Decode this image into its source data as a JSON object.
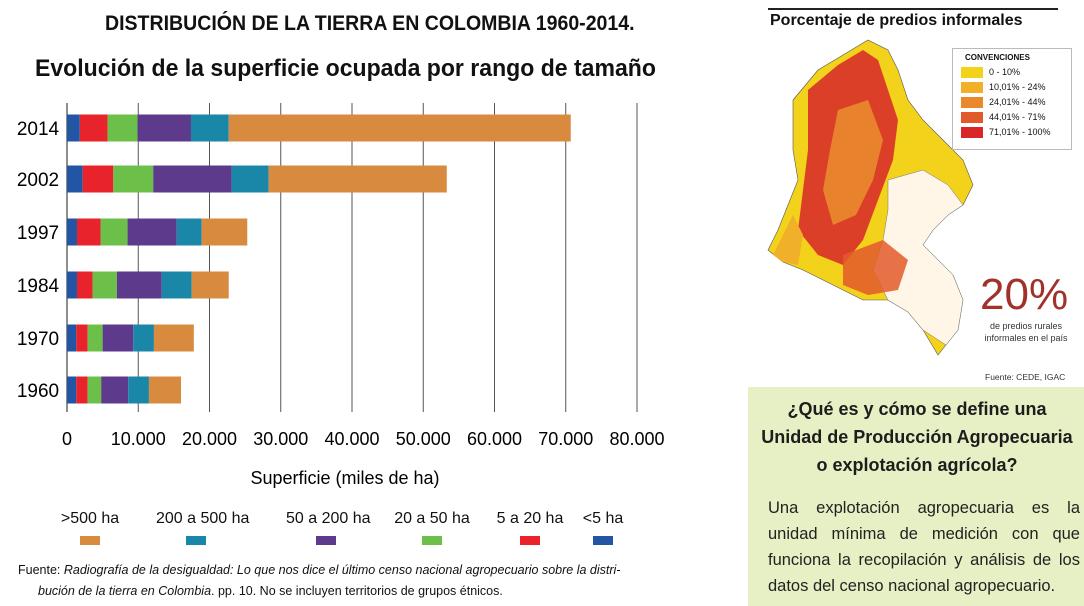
{
  "title_main": "DISTRIBUCIÓN DE LA TIERRA EN COLOMBIA 1960-2014.",
  "title_sub": "Evolución de la superficie ocupada por rango de tamaño",
  "chart_data": {
    "type": "bar",
    "orientation": "horizontal",
    "stacked": true,
    "categories": [
      "2014",
      "2002",
      "1997",
      "1984",
      "1970",
      "1960"
    ],
    "series": [
      {
        "name": "<5 ha",
        "color": "#2255a4",
        "values": [
          1800,
          2200,
          1400,
          1400,
          1300,
          1300
        ]
      },
      {
        "name": "5 a 20 ha",
        "color": "#e8232b",
        "values": [
          3900,
          4300,
          3300,
          2200,
          1600,
          1600
        ]
      },
      {
        "name": "20 a 50 ha",
        "color": "#6cc04a",
        "values": [
          4200,
          5600,
          3800,
          3400,
          2100,
          1900
        ]
      },
      {
        "name": "50 a 200 ha",
        "color": "#5e3a8c",
        "values": [
          7500,
          11000,
          6900,
          6300,
          4300,
          3800
        ]
      },
      {
        "name": "200 a 500 ha",
        "color": "#1b87a8",
        "values": [
          5300,
          5200,
          3500,
          4200,
          2900,
          2900
        ]
      },
      {
        "name": ">500 ha",
        "color": "#d88a3e",
        "values": [
          48000,
          25000,
          6400,
          5200,
          5600,
          4500
        ]
      }
    ],
    "legend_order": [
      ">500 ha",
      "200 a 500 ha",
      "50 a 200 ha",
      "20 a 50 ha",
      "5 a 20 ha",
      "<5 ha"
    ],
    "xlabel": "Superficie (miles de ha)",
    "xlim": [
      0,
      80000
    ],
    "xticks": [
      "0",
      "10.000",
      "20.000",
      "30.000",
      "40.000",
      "50.000",
      "60.000",
      "70.000",
      "80.000"
    ],
    "grid": true
  },
  "source": {
    "prefix": "Fuente: ",
    "italic": "Radiografía de la desigualdad: Lo que nos dice el último censo nacional agropecuario sobre la distri-",
    "italic2": "bución de la tierra en Colombia",
    "rest": ". pp. 10.  No se incluyen territorios de grupos étnicos."
  },
  "map": {
    "title": "Porcentaje de predios informales",
    "legend_title": "CONVENCIONES",
    "legend": [
      {
        "label": "0 - 10%",
        "color": "#f2d21b"
      },
      {
        "label": "10,01% - 24%",
        "color": "#f0b02a"
      },
      {
        "label": "24,01% - 44%",
        "color": "#e9892c"
      },
      {
        "label": "44,01% - 71%",
        "color": "#e35a2a"
      },
      {
        "label": "71,01% - 100%",
        "color": "#d8262a"
      }
    ],
    "big_number": "20%",
    "big_label": "de predios rurales informales en el país",
    "source": "Fuente: CEDE, IGAC"
  },
  "info": {
    "question": "¿Qué es y cómo se define una Unidad de Producción Agropecuaria o explotación agrícola?",
    "answer": "Una explotación agropecuaria es la unidad mínima de medición con que funciona la recopilación y análisis de los datos del censo nacional agropecuario."
  }
}
